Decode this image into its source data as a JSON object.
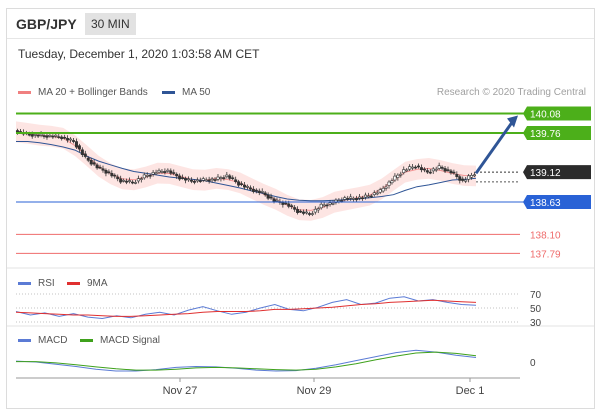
{
  "header": {
    "symbol": "GBP/JPY",
    "timeframe": "30 MIN"
  },
  "datetime": "Tuesday, December 1, 2020 1:03:58 AM CET",
  "legend": {
    "ma_bb_label": "MA 20 + Bollinger Bands",
    "ma50_label": "MA 50",
    "credit": "Research © 2020 Trading Central"
  },
  "colors": {
    "ma_bb": "#f08080",
    "ma50": "#2f5596",
    "resistance": "#4caf1a",
    "support_blue": "#2962d6",
    "support_red": "#ef6b6b",
    "last_price_bg": "#2b2b2b",
    "arrow": "#2f5596",
    "candle": "#333333",
    "bollinger_fill": "#fde0de",
    "rsi": "#5b7bd5",
    "rsi_ma": "#e03030",
    "macd": "#5b7bd5",
    "macd_signal": "#3fa11c"
  },
  "chart_data": [
    {
      "type": "candlestick",
      "title": "",
      "y_range": [
        137.55,
        140.3
      ],
      "price_levels": [
        {
          "label": "140.08",
          "value": 140.08,
          "kind": "resistance"
        },
        {
          "label": "139.76",
          "value": 139.76,
          "kind": "resistance"
        },
        {
          "label": "139.12",
          "value": 139.12,
          "kind": "last"
        },
        {
          "label": "138.63",
          "value": 138.63,
          "kind": "support"
        },
        {
          "label": "138.10",
          "value": 138.1,
          "kind": "support-minor"
        },
        {
          "label": "137.79",
          "value": 137.79,
          "kind": "support-minor"
        }
      ],
      "close_path": [
        139.8,
        139.74,
        139.72,
        139.71,
        139.69,
        139.62,
        139.35,
        139.2,
        139.1,
        138.98,
        138.95,
        139.05,
        139.12,
        139.14,
        139.03,
        138.97,
        138.99,
        139.0,
        139.06,
        138.93,
        138.84,
        138.78,
        138.65,
        138.6,
        138.48,
        138.43,
        138.57,
        138.62,
        138.69,
        138.69,
        138.73,
        138.81,
        138.99,
        139.15,
        139.22,
        139.12,
        139.2,
        139.12,
        138.97,
        139.1
      ],
      "ma50_path": [
        139.62,
        139.62,
        139.6,
        139.57,
        139.53,
        139.48,
        139.38,
        139.3,
        139.24,
        139.18,
        139.13,
        139.1,
        139.07,
        139.04,
        139.02,
        139.0,
        138.98,
        138.94,
        138.9,
        138.86,
        138.81,
        138.77,
        138.72,
        138.68,
        138.66,
        138.65,
        138.65,
        138.66,
        138.67,
        138.68,
        138.7,
        138.72,
        138.75,
        138.82,
        138.88,
        138.91,
        138.95,
        138.99,
        139.0,
        139.02
      ],
      "forecast_target": 140.08
    },
    {
      "type": "line",
      "name": "RSI",
      "series": [
        {
          "name": "RSI",
          "values": [
            45,
            40,
            43,
            38,
            42,
            37,
            35,
            39,
            36,
            41,
            44,
            40,
            47,
            52,
            46,
            41,
            44,
            50,
            55,
            48,
            46,
            51,
            58,
            62,
            55,
            57,
            64,
            66,
            60,
            62,
            58,
            55,
            54
          ]
        },
        {
          "name": "9MA",
          "values": [
            44,
            43,
            42,
            41,
            40,
            40,
            39,
            38,
            38,
            39,
            40,
            41,
            42,
            44,
            45,
            45,
            45,
            46,
            48,
            48,
            49,
            50,
            51,
            53,
            55,
            56,
            58,
            59,
            60,
            61,
            60,
            59,
            58
          ]
        }
      ],
      "tick_labels": [
        "70",
        "50",
        "30"
      ]
    },
    {
      "type": "line",
      "name": "MACD",
      "series": [
        {
          "name": "MACD",
          "values": [
            0.02,
            0.0,
            -0.05,
            -0.1,
            -0.16,
            -0.2,
            -0.2,
            -0.17,
            -0.12,
            -0.1,
            -0.11,
            -0.14,
            -0.18,
            -0.2,
            -0.19,
            -0.14,
            -0.06,
            0.03,
            0.12,
            0.21,
            0.26,
            0.22,
            0.15,
            0.1
          ]
        },
        {
          "name": "MACD Signal",
          "values": [
            0.01,
            0.01,
            -0.02,
            -0.06,
            -0.11,
            -0.15,
            -0.18,
            -0.18,
            -0.16,
            -0.13,
            -0.12,
            -0.13,
            -0.15,
            -0.17,
            -0.18,
            -0.16,
            -0.11,
            -0.04,
            0.05,
            0.13,
            0.2,
            0.22,
            0.19,
            0.14
          ]
        }
      ],
      "tick_labels": [
        "0"
      ]
    }
  ],
  "x_axis": {
    "tick_labels": [
      "Nov 27",
      "Nov 29",
      "Dec 1"
    ]
  }
}
